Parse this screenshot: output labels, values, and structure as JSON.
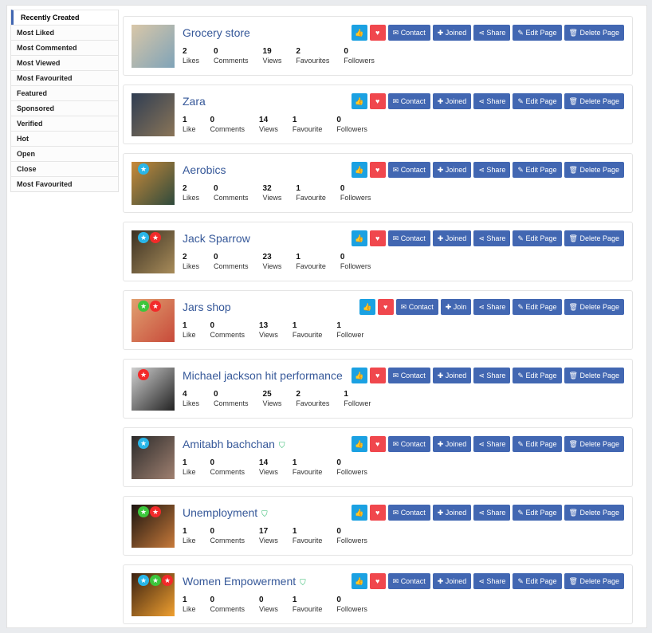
{
  "sidebar": {
    "items": [
      "Recently Created",
      "Most Liked",
      "Most Commented",
      "Most Viewed",
      "Most Favourited",
      "Featured",
      "Sponsored",
      "Verified",
      "Hot",
      "Open",
      "Close",
      "Most Favourited"
    ]
  },
  "colors": {
    "primary": "#4267b2",
    "like": "#1ba1e2",
    "heart": "#f0474d",
    "title": "#365899",
    "badge_blue": "#29b6e8",
    "badge_green": "#3cc63c",
    "badge_red": "#f22a2a",
    "verified": "#2fb86e"
  },
  "buttons": {
    "contact": "Contact",
    "share": "Share",
    "edit": "Edit Page",
    "delete": "Delete Page"
  },
  "pages": [
    {
      "title": "Grocery store",
      "verified": false,
      "badges": [],
      "thumb": [
        "#d9c7a8",
        "#7fa3b8"
      ],
      "join": "Joined",
      "stats": [
        [
          "2",
          "Likes"
        ],
        [
          "0",
          "Comments"
        ],
        [
          "19",
          "Views"
        ],
        [
          "2",
          "Favourites"
        ],
        [
          "0",
          "Followers"
        ]
      ]
    },
    {
      "title": "Zara",
      "verified": false,
      "badges": [],
      "thumb": [
        "#2f3d52",
        "#8a7558"
      ],
      "join": "Joined",
      "stats": [
        [
          "1",
          "Like"
        ],
        [
          "0",
          "Comments"
        ],
        [
          "14",
          "Views"
        ],
        [
          "1",
          "Favourite"
        ],
        [
          "0",
          "Followers"
        ]
      ]
    },
    {
      "title": "Aerobics",
      "verified": false,
      "badges": [
        "blue"
      ],
      "thumb": [
        "#c98a3a",
        "#2e4a3c"
      ],
      "join": "Joined",
      "stats": [
        [
          "2",
          "Likes"
        ],
        [
          "0",
          "Comments"
        ],
        [
          "32",
          "Views"
        ],
        [
          "1",
          "Favourite"
        ],
        [
          "0",
          "Followers"
        ]
      ]
    },
    {
      "title": "Jack Sparrow",
      "verified": false,
      "badges": [
        "blue",
        "red"
      ],
      "thumb": [
        "#3a3022",
        "#a88c5a"
      ],
      "join": "Joined",
      "stats": [
        [
          "2",
          "Likes"
        ],
        [
          "0",
          "Comments"
        ],
        [
          "23",
          "Views"
        ],
        [
          "1",
          "Favourite"
        ],
        [
          "0",
          "Followers"
        ]
      ]
    },
    {
      "title": "Jars shop",
      "verified": false,
      "badges": [
        "green",
        "red"
      ],
      "thumb": [
        "#e0a070",
        "#c84a3a"
      ],
      "join": "Join",
      "stats": [
        [
          "1",
          "Like"
        ],
        [
          "0",
          "Comments"
        ],
        [
          "13",
          "Views"
        ],
        [
          "1",
          "Favourite"
        ],
        [
          "1",
          "Follower"
        ]
      ]
    },
    {
      "title": "Michael jackson hit performance",
      "verified": false,
      "badges": [
        "red"
      ],
      "thumb": [
        "#d0d0d0",
        "#222222"
      ],
      "join": "Joined",
      "stats": [
        [
          "4",
          "Likes"
        ],
        [
          "0",
          "Comments"
        ],
        [
          "25",
          "Views"
        ],
        [
          "2",
          "Favourites"
        ],
        [
          "1",
          "Follower"
        ]
      ]
    },
    {
      "title": "Amitabh bachchan",
      "verified": true,
      "badges": [
        "blue"
      ],
      "thumb": [
        "#2a2a2a",
        "#a08070"
      ],
      "join": "Joined",
      "stats": [
        [
          "1",
          "Like"
        ],
        [
          "0",
          "Comments"
        ],
        [
          "14",
          "Views"
        ],
        [
          "1",
          "Favourite"
        ],
        [
          "0",
          "Followers"
        ]
      ]
    },
    {
      "title": "Unemployment",
      "verified": true,
      "badges": [
        "green",
        "red"
      ],
      "thumb": [
        "#1a1410",
        "#c87a3a"
      ],
      "join": "Joined",
      "stats": [
        [
          "1",
          "Like"
        ],
        [
          "0",
          "Comments"
        ],
        [
          "17",
          "Views"
        ],
        [
          "1",
          "Favourite"
        ],
        [
          "0",
          "Followers"
        ]
      ]
    },
    {
      "title": "Women Empowerment",
      "verified": true,
      "badges": [
        "blue",
        "green",
        "red"
      ],
      "thumb": [
        "#3a2010",
        "#f0a030"
      ],
      "join": "Joined",
      "stats": [
        [
          "1",
          "Like"
        ],
        [
          "0",
          "Comments"
        ],
        [
          "0",
          "Views"
        ],
        [
          "1",
          "Favourite"
        ],
        [
          "0",
          "Followers"
        ]
      ]
    }
  ]
}
